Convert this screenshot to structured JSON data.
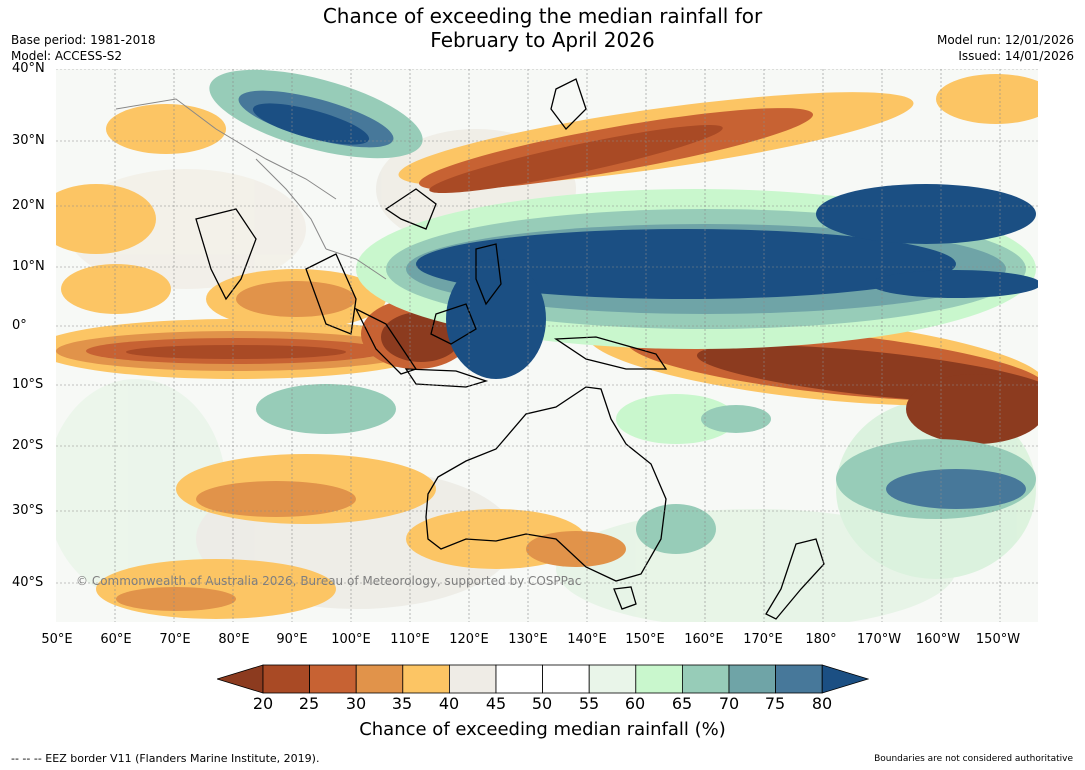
{
  "title": {
    "line1": "Chance of exceeding the median rainfall for",
    "line2": "February to April 2026"
  },
  "meta_left": {
    "base_period": "Base period: 1981-2018",
    "model": "Model: ACCESS-S2"
  },
  "meta_right": {
    "model_run": "Model run: 12/01/2026",
    "issued": "Issued: 14/01/2026"
  },
  "map": {
    "copyright": "© Commonwealth of Australia 2026, Bureau of Meteorology, supported by COSPPac",
    "lat_labels": [
      "40°N",
      "30°N",
      "20°N",
      "10°N",
      "0°",
      "10°S",
      "20°S",
      "30°S",
      "40°S"
    ],
    "lon_labels": [
      "50°E",
      "60°E",
      "70°E",
      "80°E",
      "90°E",
      "100°E",
      "110°E",
      "120°E",
      "130°E",
      "140°E",
      "150°E",
      "160°E",
      "170°E",
      "180°",
      "170°W",
      "160°W",
      "150°W"
    ]
  },
  "colorbar": {
    "ticks": [
      "20",
      "25",
      "30",
      "35",
      "40",
      "45",
      "50",
      "55",
      "60",
      "65",
      "70",
      "75",
      "80"
    ],
    "colors": [
      "#8c3b1f",
      "#a94a25",
      "#c76233",
      "#e1934a",
      "#fcc564",
      "#efece6",
      "#ffffff",
      "#ffffff",
      "#e9f5e9",
      "#c9f7cd",
      "#97ccb8",
      "#6fa4a7",
      "#47789a",
      "#1b4f83"
    ],
    "label": "Chance of exceeding median rainfall (%)"
  },
  "footer": {
    "eez_note": "--  --  -- EEZ border V11 (Flanders Marine Institute, 2019).",
    "disclaimer": "Boundaries are not considered authoritative"
  }
}
